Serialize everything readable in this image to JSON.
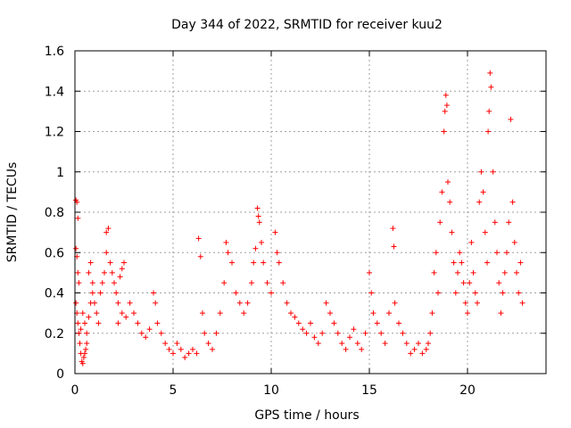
{
  "chart_data": {
    "type": "scatter",
    "title": "Day 344 of 2022, SRMTID for receiver kuu2",
    "xlabel": "GPS time / hours",
    "ylabel": "SRMTID / TECUs",
    "xlim": [
      0,
      24
    ],
    "ylim": [
      0,
      1.6
    ],
    "xticks": [
      0,
      5,
      10,
      15,
      20
    ],
    "yticks": [
      0,
      0.2,
      0.4,
      0.6,
      0.8,
      1,
      1.2,
      1.4,
      1.6
    ],
    "ytick_labels": [
      "0",
      "0.2",
      "0.4",
      "0.6",
      "0.8",
      "1",
      "1.2",
      "1.4",
      "1.6"
    ],
    "grid": true,
    "marker": "+",
    "color": "#ff0000",
    "series": [
      {
        "name": "SRMTID",
        "points": [
          [
            0.05,
            0.86
          ],
          [
            0.1,
            0.85
          ],
          [
            0.15,
            0.77
          ],
          [
            0.05,
            0.62
          ],
          [
            0.1,
            0.58
          ],
          [
            0.15,
            0.5
          ],
          [
            0.2,
            0.45
          ],
          [
            0.05,
            0.35
          ],
          [
            0.1,
            0.3
          ],
          [
            0.15,
            0.25
          ],
          [
            0.2,
            0.2
          ],
          [
            0.25,
            0.15
          ],
          [
            0.3,
            0.1
          ],
          [
            0.35,
            0.06
          ],
          [
            0.4,
            0.05
          ],
          [
            0.45,
            0.08
          ],
          [
            0.5,
            0.1
          ],
          [
            0.55,
            0.12
          ],
          [
            0.6,
            0.15
          ],
          [
            0.3,
            0.22
          ],
          [
            0.4,
            0.3
          ],
          [
            0.5,
            0.25
          ],
          [
            0.6,
            0.2
          ],
          [
            0.7,
            0.28
          ],
          [
            0.8,
            0.35
          ],
          [
            0.9,
            0.4
          ],
          [
            0.7,
            0.5
          ],
          [
            0.8,
            0.55
          ],
          [
            0.9,
            0.45
          ],
          [
            1.0,
            0.35
          ],
          [
            1.1,
            0.3
          ],
          [
            1.2,
            0.25
          ],
          [
            1.3,
            0.4
          ],
          [
            1.4,
            0.45
          ],
          [
            1.5,
            0.5
          ],
          [
            1.6,
            0.7
          ],
          [
            1.7,
            0.72
          ],
          [
            1.6,
            0.6
          ],
          [
            1.8,
            0.55
          ],
          [
            1.9,
            0.5
          ],
          [
            2.0,
            0.45
          ],
          [
            2.1,
            0.4
          ],
          [
            2.2,
            0.35
          ],
          [
            2.3,
            0.48
          ],
          [
            2.4,
            0.52
          ],
          [
            2.5,
            0.55
          ],
          [
            2.2,
            0.25
          ],
          [
            2.4,
            0.3
          ],
          [
            2.6,
            0.28
          ],
          [
            2.8,
            0.35
          ],
          [
            3.0,
            0.3
          ],
          [
            3.2,
            0.25
          ],
          [
            3.4,
            0.2
          ],
          [
            3.6,
            0.18
          ],
          [
            3.8,
            0.22
          ],
          [
            4.0,
            0.4
          ],
          [
            4.1,
            0.35
          ],
          [
            4.2,
            0.25
          ],
          [
            4.4,
            0.2
          ],
          [
            4.6,
            0.15
          ],
          [
            4.8,
            0.12
          ],
          [
            5.0,
            0.1
          ],
          [
            5.2,
            0.15
          ],
          [
            5.4,
            0.12
          ],
          [
            5.6,
            0.08
          ],
          [
            5.8,
            0.1
          ],
          [
            6.0,
            0.12
          ],
          [
            6.2,
            0.1
          ],
          [
            6.3,
            0.67
          ],
          [
            6.4,
            0.58
          ],
          [
            6.5,
            0.3
          ],
          [
            6.6,
            0.2
          ],
          [
            6.8,
            0.15
          ],
          [
            7.0,
            0.12
          ],
          [
            7.2,
            0.2
          ],
          [
            7.4,
            0.3
          ],
          [
            7.6,
            0.45
          ],
          [
            7.7,
            0.65
          ],
          [
            7.8,
            0.6
          ],
          [
            8.0,
            0.55
          ],
          [
            8.2,
            0.4
          ],
          [
            8.4,
            0.35
          ],
          [
            8.6,
            0.3
          ],
          [
            8.8,
            0.35
          ],
          [
            9.0,
            0.45
          ],
          [
            9.1,
            0.55
          ],
          [
            9.2,
            0.62
          ],
          [
            9.3,
            0.82
          ],
          [
            9.35,
            0.78
          ],
          [
            9.4,
            0.75
          ],
          [
            9.5,
            0.65
          ],
          [
            9.6,
            0.55
          ],
          [
            9.8,
            0.45
          ],
          [
            10.0,
            0.4
          ],
          [
            10.2,
            0.7
          ],
          [
            10.3,
            0.6
          ],
          [
            10.4,
            0.55
          ],
          [
            10.6,
            0.45
          ],
          [
            10.8,
            0.35
          ],
          [
            11.0,
            0.3
          ],
          [
            11.2,
            0.28
          ],
          [
            11.4,
            0.25
          ],
          [
            11.6,
            0.22
          ],
          [
            11.8,
            0.2
          ],
          [
            12.0,
            0.25
          ],
          [
            12.2,
            0.18
          ],
          [
            12.4,
            0.15
          ],
          [
            12.6,
            0.2
          ],
          [
            12.8,
            0.35
          ],
          [
            13.0,
            0.3
          ],
          [
            13.2,
            0.25
          ],
          [
            13.4,
            0.2
          ],
          [
            13.6,
            0.15
          ],
          [
            13.8,
            0.12
          ],
          [
            14.0,
            0.18
          ],
          [
            14.2,
            0.22
          ],
          [
            14.4,
            0.15
          ],
          [
            14.6,
            0.12
          ],
          [
            14.8,
            0.2
          ],
          [
            15.0,
            0.5
          ],
          [
            15.1,
            0.4
          ],
          [
            15.2,
            0.3
          ],
          [
            15.4,
            0.25
          ],
          [
            15.6,
            0.2
          ],
          [
            15.8,
            0.15
          ],
          [
            16.0,
            0.3
          ],
          [
            16.2,
            0.72
          ],
          [
            16.25,
            0.63
          ],
          [
            16.3,
            0.35
          ],
          [
            16.5,
            0.25
          ],
          [
            16.7,
            0.2
          ],
          [
            16.9,
            0.15
          ],
          [
            17.1,
            0.1
          ],
          [
            17.3,
            0.12
          ],
          [
            17.5,
            0.15
          ],
          [
            17.7,
            0.1
          ],
          [
            17.9,
            0.12
          ],
          [
            18.0,
            0.15
          ],
          [
            18.1,
            0.2
          ],
          [
            18.2,
            0.3
          ],
          [
            18.3,
            0.5
          ],
          [
            18.4,
            0.6
          ],
          [
            18.5,
            0.4
          ],
          [
            18.6,
            0.75
          ],
          [
            18.7,
            0.9
          ],
          [
            18.8,
            1.2
          ],
          [
            18.85,
            1.3
          ],
          [
            18.9,
            1.38
          ],
          [
            18.95,
            1.33
          ],
          [
            19.0,
            0.95
          ],
          [
            19.1,
            0.85
          ],
          [
            19.2,
            0.7
          ],
          [
            19.3,
            0.55
          ],
          [
            19.4,
            0.4
          ],
          [
            19.5,
            0.5
          ],
          [
            19.6,
            0.6
          ],
          [
            19.7,
            0.55
          ],
          [
            19.8,
            0.45
          ],
          [
            19.9,
            0.35
          ],
          [
            20.0,
            0.3
          ],
          [
            20.1,
            0.45
          ],
          [
            20.2,
            0.65
          ],
          [
            20.3,
            0.5
          ],
          [
            20.4,
            0.4
          ],
          [
            20.5,
            0.35
          ],
          [
            20.6,
            0.85
          ],
          [
            20.7,
            1.0
          ],
          [
            20.8,
            0.9
          ],
          [
            20.9,
            0.7
          ],
          [
            21.0,
            0.55
          ],
          [
            21.05,
            1.2
          ],
          [
            21.1,
            1.3
          ],
          [
            21.15,
            1.49
          ],
          [
            21.2,
            1.42
          ],
          [
            21.3,
            1.0
          ],
          [
            21.4,
            0.75
          ],
          [
            21.5,
            0.6
          ],
          [
            21.6,
            0.45
          ],
          [
            21.7,
            0.3
          ],
          [
            21.8,
            0.4
          ],
          [
            21.9,
            0.5
          ],
          [
            22.0,
            0.6
          ],
          [
            22.1,
            0.75
          ],
          [
            22.2,
            1.26
          ],
          [
            22.3,
            0.85
          ],
          [
            22.4,
            0.65
          ],
          [
            22.5,
            0.5
          ],
          [
            22.6,
            0.4
          ],
          [
            22.7,
            0.55
          ],
          [
            22.8,
            0.35
          ]
        ]
      }
    ]
  }
}
